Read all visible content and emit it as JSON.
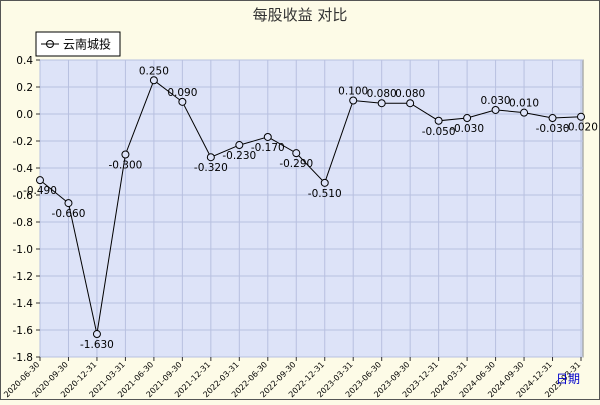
{
  "chart_data": {
    "type": "line",
    "title": "每股收益  对比",
    "xlabel": "日期",
    "ylabel": "",
    "ylim": [
      -1.8,
      0.4
    ],
    "yticks": [
      0.4,
      0.2,
      0.0,
      -0.2,
      -0.4,
      -0.6,
      -0.8,
      -1.0,
      -1.2,
      -1.4,
      -1.6,
      -1.8
    ],
    "ytick_labels": [
      "0.4",
      "0.2",
      "0.0",
      "-0.2",
      "-0.4",
      "-0.6",
      "-0.8",
      "-1.0",
      "-1.2",
      "-1.4",
      "-1.6",
      "-1.8"
    ],
    "grid": true,
    "legend_position": "top-left",
    "categories": [
      "2020-06-30",
      "2020-09-30",
      "2020-12-31",
      "2021-03-31",
      "2021-06-30",
      "2021-09-30",
      "2021-12-31",
      "2022-03-31",
      "2022-06-30",
      "2022-09-30",
      "2022-12-31",
      "2023-03-31",
      "2023-06-30",
      "2023-09-30",
      "2023-12-31",
      "2024-03-31",
      "2024-06-30",
      "2024-09-30",
      "2024-12-31",
      "2025-03-31"
    ],
    "series": [
      {
        "name": "云南城投",
        "values": [
          -0.49,
          -0.66,
          -1.63,
          -0.3,
          0.25,
          0.09,
          -0.32,
          -0.23,
          -0.17,
          -0.29,
          -0.51,
          0.1,
          0.08,
          0.08,
          -0.05,
          -0.03,
          0.03,
          0.01,
          -0.03,
          -0.02
        ],
        "labels": [
          "-0.490",
          "-0.660",
          "-1.630",
          "-0.300",
          "0.250",
          "0.090",
          "-0.320",
          "-0.230",
          "-0.170",
          "-0.290",
          "-0.510",
          "0.100",
          "0.080",
          "0.080",
          "-0.050",
          "-0.030",
          "0.030",
          "0.010",
          "-0.030",
          "-0.020"
        ]
      }
    ],
    "colors": {
      "background": "#fdfbe7",
      "plot_background": "#dde3f8",
      "grid": "#b8c0e0",
      "line": "#000000",
      "title": "#333333",
      "date_label": "#0000cc"
    }
  }
}
